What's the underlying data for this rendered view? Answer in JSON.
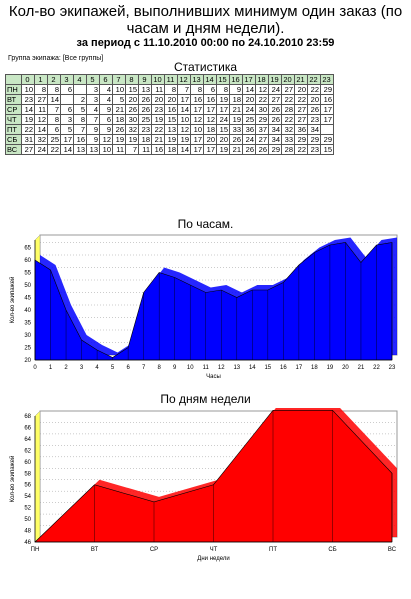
{
  "report": {
    "title": "Кол-во экипажей, выполнивших минимум один заказ (по часам и дням недели).",
    "period": "за период с 11.10.2010 00:00 по 24.10.2010 23:59",
    "group_label": "Группа экипажа:",
    "group_value": "[Все группы]"
  },
  "stats": {
    "title": "Статистика",
    "hours": [
      "0",
      "1",
      "2",
      "3",
      "4",
      "5",
      "6",
      "7",
      "8",
      "9",
      "10",
      "11",
      "12",
      "13",
      "14",
      "15",
      "16",
      "17",
      "18",
      "19",
      "20",
      "21",
      "22",
      "23"
    ],
    "rows": [
      {
        "day": "ПН",
        "values": [
          "10",
          "8",
          "8",
          "6",
          "",
          "3",
          "4",
          "10",
          "15",
          "13",
          "11",
          "8",
          "7",
          "8",
          "6",
          "8",
          "9",
          "14",
          "12",
          "24",
          "27",
          "20",
          "22",
          "29"
        ]
      },
      {
        "day": "ВТ",
        "values": [
          "23",
          "27",
          "14",
          "",
          "2",
          "3",
          "4",
          "5",
          "20",
          "26",
          "20",
          "20",
          "17",
          "16",
          "16",
          "19",
          "18",
          "20",
          "22",
          "27",
          "22",
          "22",
          "20",
          "16"
        ]
      },
      {
        "day": "СР",
        "values": [
          "14",
          "11",
          "7",
          "6",
          "5",
          "4",
          "9",
          "21",
          "26",
          "26",
          "23",
          "16",
          "14",
          "17",
          "17",
          "17",
          "21",
          "24",
          "30",
          "26",
          "28",
          "27",
          "26",
          "17"
        ]
      },
      {
        "day": "ЧТ",
        "values": [
          "19",
          "12",
          "8",
          "3",
          "8",
          "7",
          "6",
          "18",
          "30",
          "25",
          "19",
          "15",
          "10",
          "12",
          "12",
          "24",
          "19",
          "25",
          "29",
          "26",
          "22",
          "27",
          "23",
          "17"
        ]
      },
      {
        "day": "ПТ",
        "values": [
          "22",
          "14",
          "6",
          "5",
          "7",
          "9",
          "9",
          "26",
          "32",
          "23",
          "22",
          "13",
          "12",
          "10",
          "18",
          "15",
          "33",
          "36",
          "37",
          "34",
          "32",
          "36",
          "34",
          ""
        ]
      },
      {
        "day": "СБ",
        "values": [
          "31",
          "32",
          "25",
          "17",
          "16",
          "9",
          "12",
          "19",
          "19",
          "18",
          "21",
          "19",
          "19",
          "17",
          "20",
          "20",
          "26",
          "24",
          "27",
          "34",
          "33",
          "29",
          "29",
          "29"
        ]
      },
      {
        "day": "ВС",
        "values": [
          "27",
          "24",
          "22",
          "14",
          "13",
          "13",
          "10",
          "11",
          "7",
          "11",
          "16",
          "18",
          "14",
          "17",
          "17",
          "19",
          "21",
          "26",
          "26",
          "29",
          "28",
          "22",
          "23",
          "15"
        ]
      }
    ]
  },
  "chart_data": [
    {
      "type": "area",
      "title": "По часам.",
      "xlabel": "Часы",
      "ylabel": "Кол-во экипажей",
      "x": [
        0,
        1,
        2,
        3,
        4,
        5,
        6,
        7,
        8,
        9,
        10,
        11,
        12,
        13,
        14,
        15,
        16,
        17,
        18,
        19,
        20,
        21,
        22,
        23
      ],
      "values": [
        60,
        56,
        40,
        28,
        24,
        21,
        25,
        47,
        55,
        53,
        50,
        47,
        48,
        45,
        48,
        48,
        51,
        58,
        63,
        66,
        67,
        59,
        66,
        67
      ],
      "ylim": [
        20,
        68
      ],
      "yticks": [
        20,
        25,
        30,
        35,
        40,
        45,
        50,
        55,
        60,
        65
      ],
      "grid": true,
      "color": "#0000ff"
    },
    {
      "type": "area",
      "title": "По дням недели",
      "xlabel": "Дни недели",
      "ylabel": "Кол-во экипажей",
      "categories": [
        "ПН",
        "ВТ",
        "СР",
        "ЧТ",
        "ПТ",
        "СБ",
        "ВС"
      ],
      "values": [
        46,
        56,
        53,
        56,
        69,
        69,
        58
      ],
      "ylim": [
        46,
        68
      ],
      "yticks": [
        46,
        48,
        50,
        52,
        54,
        56,
        58,
        60,
        62,
        64,
        66,
        68
      ],
      "grid": true,
      "color": "#ff0000"
    }
  ]
}
